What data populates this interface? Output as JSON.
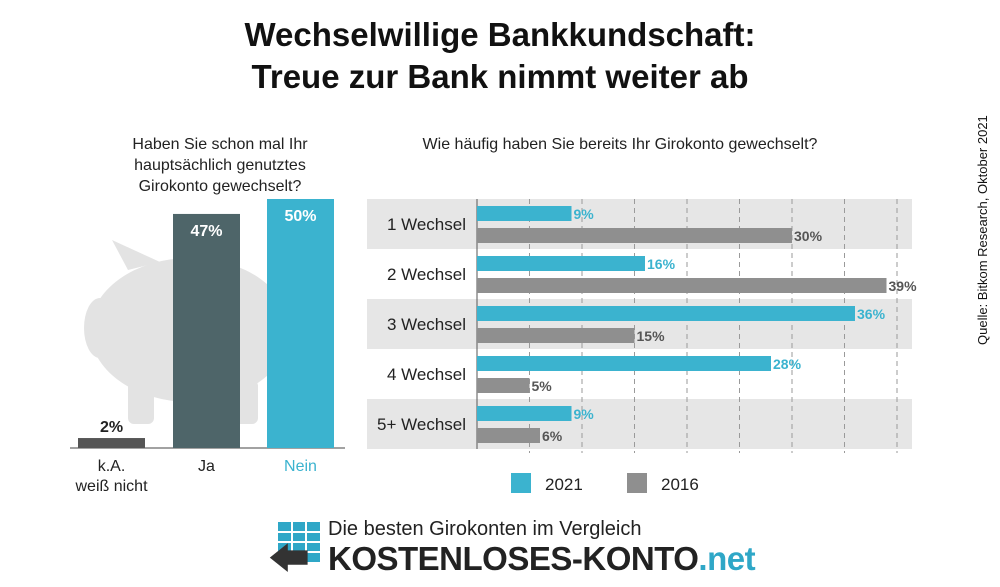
{
  "title_line1": "Wechselwillige Bankkundschaft:",
  "title_line2": "Treue zur Bank nimmt weiter ab",
  "source": "Quelle: Bitkom Research, Oktober 2021",
  "colors": {
    "teal": "#3bb3cf",
    "dark": "#4e6569",
    "gray": "#8f8f8f",
    "darkgray": "#555555",
    "band": "#e6e6e6",
    "piggy": "#e3e3e3"
  },
  "footer": {
    "subtitle": "Die besten Girokonten im Vergleich",
    "brand": "KOSTENLOSES-KONTO",
    "brand_suffix": ".net"
  },
  "chart_data": [
    {
      "type": "bar",
      "title": "Haben Sie schon mal Ihr hauptsächlich genutztes Girokonto gewechselt?",
      "title_lines": [
        "Haben Sie schon mal Ihr",
        "hauptsächlich genutztes",
        "Girokonto gewechselt?"
      ],
      "categories": [
        "k.A. weiß nicht",
        "Ja",
        "Nein"
      ],
      "category_lines": [
        [
          "k.A.",
          "weiß nicht"
        ],
        [
          "Ja"
        ],
        [
          "Nein"
        ]
      ],
      "values": [
        2,
        47,
        50
      ],
      "value_labels": [
        "2%",
        "47%",
        "50%"
      ],
      "ylim": [
        0,
        50
      ]
    },
    {
      "type": "bar",
      "orientation": "horizontal",
      "title": "Wie häufig haben Sie bereits Ihr Girokonto gewechselt?",
      "categories": [
        "1 Wechsel",
        "2 Wechsel",
        "3 Wechsel",
        "4 Wechsel",
        "5+ Wechsel"
      ],
      "series": [
        {
          "name": "2021",
          "values": [
            9,
            16,
            36,
            28,
            9
          ],
          "labels": [
            "9%",
            "16%",
            "36%",
            "28%",
            "9%"
          ]
        },
        {
          "name": "2016",
          "values": [
            30,
            39,
            15,
            5,
            6
          ],
          "labels": [
            "30%",
            "39%",
            "15%",
            "5%",
            "6%"
          ]
        }
      ],
      "xlim": [
        0,
        40
      ],
      "grid": true,
      "legend": "bottom"
    }
  ]
}
